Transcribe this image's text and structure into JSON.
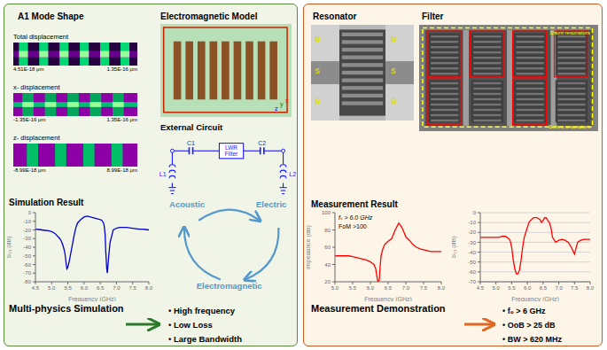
{
  "chart_data": [
    {
      "type": "line",
      "title": "Simulation Result",
      "x_label": "Frequency (GHz)",
      "y_label": "S₂₁ (dB)",
      "x": [
        4.5,
        4.6,
        4.7,
        4.8,
        4.9,
        5.0,
        5.1,
        5.2,
        5.25,
        5.3,
        5.35,
        5.4,
        5.42,
        5.45,
        5.47,
        5.5,
        5.55,
        5.6,
        5.65,
        5.7,
        5.75,
        5.8,
        5.9,
        6.0,
        6.1,
        6.2,
        6.3,
        6.4,
        6.5,
        6.55,
        6.6,
        6.62,
        6.65,
        6.67,
        6.7,
        6.72,
        6.75,
        6.8,
        6.9,
        7.0,
        7.1,
        7.2,
        7.3,
        7.4,
        7.5,
        7.6,
        7.7,
        7.8,
        7.9,
        8.0
      ],
      "values": [
        -19,
        -19.5,
        -20,
        -20.5,
        -21,
        -22,
        -24,
        -28,
        -30,
        -33,
        -38,
        -45,
        -50,
        -60,
        -65,
        -63,
        -55,
        -45,
        -35,
        -25,
        -17,
        -12,
        -8,
        -5,
        -4,
        -5,
        -6,
        -7,
        -8,
        -9,
        -12,
        -15,
        -25,
        -45,
        -65,
        -70,
        -55,
        -35,
        -20,
        -18,
        -17,
        -17,
        -17,
        -17.5,
        -18,
        -18.5,
        -19,
        -19,
        -19.5,
        -20
      ],
      "color": "#0000cc",
      "xlim": [
        4.5,
        8.0
      ],
      "ylim": [
        -80,
        0
      ],
      "xticks": [
        4.5,
        {
          "value": 5.0,
          "label": "5.0"
        },
        5.5,
        {
          "value": 6.0,
          "label": "6.0"
        },
        6.5,
        {
          "value": 7.0,
          "label": "7.0"
        },
        7.5,
        {
          "value": 8.0,
          "label": "8.0"
        }
      ],
      "yticks": [
        0,
        -10,
        -20,
        -30,
        -40,
        -50,
        -60,
        -70,
        -80
      ],
      "grid": false,
      "annotations": [
        "A1 Mode Shape",
        "Electromagnetic Model",
        "Total displacement",
        "4.51E-18 μm",
        "1.35E-16 μm",
        "x- displacement",
        "-1.35E-16 μm",
        "1.35E-16 μm",
        "z- displacement",
        "-8.99E-18 μm",
        "8.99E-18 μm",
        "x",
        "y",
        "z",
        "External Circuit",
        "C1",
        "LWR",
        "Filter",
        "C2",
        "L1",
        "L2",
        "Acoustic",
        "Electric",
        "Electromagnetic",
        "Multi-physics Simulation",
        "• High frequency",
        "• Low Loss",
        "• Large Bandwidth"
      ]
    },
    {
      "type": "line",
      "title": "Measurement Result",
      "x_label": "Frequency (GHz)",
      "y_label": "Impedance (dB)",
      "x": [
        5.0,
        5.1,
        5.2,
        5.3,
        5.4,
        5.5,
        5.6,
        5.7,
        5.8,
        5.9,
        6.0,
        6.1,
        6.15,
        6.2,
        6.22,
        6.25,
        6.27,
        6.3,
        6.35,
        6.4,
        6.5,
        6.6,
        6.7,
        6.8,
        6.9,
        7.0,
        7.1,
        7.2,
        7.3,
        7.4,
        7.5,
        7.6,
        7.7,
        7.8,
        7.9,
        8.0
      ],
      "values": [
        50,
        50,
        50,
        50,
        50,
        49,
        48,
        47,
        46,
        45,
        43,
        40,
        35,
        22,
        20,
        22,
        35,
        50,
        58,
        63,
        67,
        70,
        80,
        88,
        82,
        72,
        68,
        63,
        60,
        58,
        57,
        56,
        55,
        55,
        55,
        55
      ],
      "color": "red",
      "xlim": [
        5.0,
        8.0
      ],
      "ylim": [
        20,
        100
      ],
      "xticks": [
        {
          "value": 5.0,
          "label": "5.0"
        },
        5.5,
        {
          "value": 6.0,
          "label": "6.0"
        },
        6.5,
        {
          "value": 7.0,
          "label": "7.0"
        },
        7.5,
        {
          "value": 8.0,
          "label": "8.0"
        }
      ],
      "yticks": [
        20,
        40,
        60,
        80,
        100
      ],
      "grid": false,
      "annotations": [
        "fₛ > 6.0 GHz",
        "FoM >100"
      ]
    },
    {
      "type": "line",
      "x_label": "Frequency (GHz)",
      "y_label": "S₂₁ (dB)",
      "x": [
        4.5,
        4.6,
        4.7,
        4.8,
        4.9,
        5.0,
        5.1,
        5.2,
        5.3,
        5.4,
        5.45,
        5.5,
        5.55,
        5.6,
        5.65,
        5.7,
        5.75,
        5.8,
        5.85,
        5.9,
        5.95,
        6.0,
        6.05,
        6.1,
        6.2,
        6.3,
        6.4,
        6.45,
        6.5,
        6.55,
        6.6,
        6.65,
        6.7,
        6.75,
        6.8,
        6.9,
        7.0,
        7.1,
        7.2,
        7.3,
        7.4,
        7.5,
        7.6,
        7.7,
        7.8,
        7.9,
        8.0
      ],
      "values": [
        -25,
        -25,
        -25,
        -25,
        -25,
        -25,
        -25,
        -24,
        -24,
        -26,
        -28,
        -35,
        -48,
        -57,
        -62,
        -62,
        -58,
        -48,
        -35,
        -25,
        -20,
        -15,
        -10,
        -8,
        -5,
        -5,
        -7,
        -10,
        -8,
        -5,
        -5,
        -8,
        -10,
        -15,
        -25,
        -30,
        -28,
        -27,
        -28,
        -30,
        -35,
        -42,
        -30,
        -28,
        -27,
        -27,
        -27
      ],
      "color": "red",
      "xlim": [
        4.5,
        8.0
      ],
      "ylim": [
        -70,
        0
      ],
      "xticks": [
        4.5,
        {
          "value": 5.0,
          "label": "5.0"
        },
        5.5,
        {
          "value": 6.0,
          "label": "6.0"
        },
        6.5,
        {
          "value": 7.0,
          "label": "7.0"
        },
        7.5,
        {
          "value": 8.0,
          "label": "8.0"
        }
      ],
      "yticks": [
        0,
        -10,
        -20,
        -30,
        -40,
        -50,
        -60,
        -70
      ],
      "grid": "y",
      "annotations": [
        "Resonator",
        "Filter",
        "G",
        "S",
        "G",
        "G",
        "S",
        "G",
        "Shunt resonators",
        "Series resonators",
        "Measurement Demonstration",
        "• f₀ > 6 GHz",
        "• OoB > 25 dB",
        "• BW > 620 MHz"
      ]
    }
  ]
}
